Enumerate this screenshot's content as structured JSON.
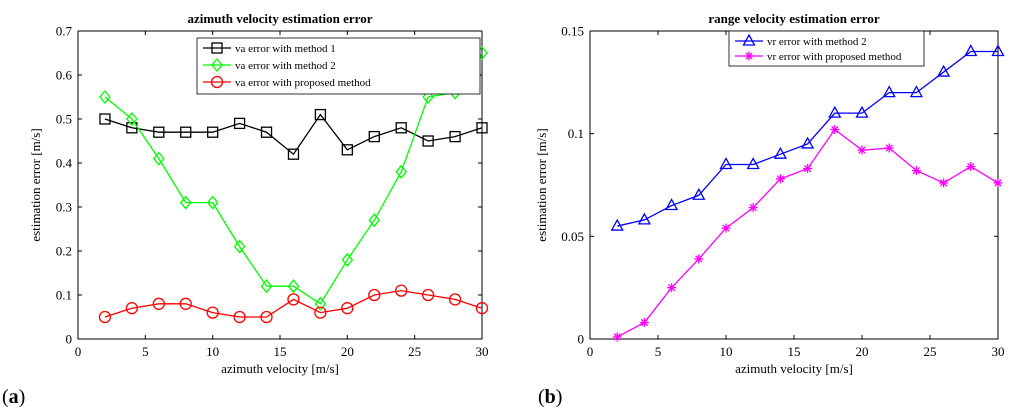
{
  "panel_labels": {
    "a": "(a)",
    "b": "(b)",
    "a_letter": "a",
    "b_letter": "b"
  },
  "chart_data": [
    {
      "type": "line",
      "title": "azimuth velocity estimation error",
      "xlabel": "azimuth velocity [m/s]",
      "ylabel": "estimation error [m/s]",
      "xlim": [
        0,
        30
      ],
      "ylim": [
        0,
        0.7
      ],
      "xticks": [
        0,
        5,
        10,
        15,
        20,
        25,
        30
      ],
      "yticks": [
        0,
        0.1,
        0.2,
        0.3,
        0.4,
        0.5,
        0.6,
        0.7
      ],
      "xtick_labels": [
        "0",
        "5",
        "10",
        "15",
        "20",
        "25",
        "30"
      ],
      "ytick_labels": [
        "0",
        "0.1",
        "0.2",
        "0.3",
        "0.4",
        "0.5",
        "0.6",
        "0.7"
      ],
      "grid": false,
      "legend_position": "top-right",
      "x": [
        2,
        4,
        6,
        8,
        10,
        12,
        14,
        16,
        18,
        20,
        22,
        24,
        26,
        28,
        30
      ],
      "series": [
        {
          "name": "va error with method 1",
          "color": "#000000",
          "marker": "square",
          "values": [
            0.5,
            0.48,
            0.47,
            0.47,
            0.47,
            0.49,
            0.47,
            0.42,
            0.51,
            0.43,
            0.46,
            0.48,
            0.45,
            0.46,
            0.48
          ]
        },
        {
          "name": "va error with method 2",
          "color": "#00ff00",
          "marker": "diamond",
          "values": [
            0.55,
            0.5,
            0.41,
            0.31,
            0.31,
            0.21,
            0.12,
            0.12,
            0.08,
            0.18,
            0.27,
            0.38,
            0.55,
            0.56,
            0.65
          ]
        },
        {
          "name": "va error with proposed method",
          "color": "#ff0000",
          "marker": "circle",
          "values": [
            0.05,
            0.07,
            0.08,
            0.08,
            0.06,
            0.05,
            0.05,
            0.09,
            0.06,
            0.07,
            0.1,
            0.11,
            0.1,
            0.09,
            0.07
          ]
        }
      ]
    },
    {
      "type": "line",
      "title": "range velocity estimation error",
      "xlabel": "azimuth velocity [m/s]",
      "ylabel": "estimation error [m/s]",
      "xlim": [
        0,
        30
      ],
      "ylim": [
        0,
        0.15
      ],
      "xticks": [
        0,
        5,
        10,
        15,
        20,
        25,
        30
      ],
      "yticks": [
        0,
        0.05,
        0.1,
        0.15
      ],
      "xtick_labels": [
        "0",
        "5",
        "10",
        "15",
        "20",
        "25",
        "30"
      ],
      "ytick_labels": [
        "0",
        "0.05",
        "0.1",
        "0.15"
      ],
      "grid": false,
      "legend_position": "top-center",
      "x": [
        2,
        4,
        6,
        8,
        10,
        12,
        14,
        16,
        18,
        20,
        22,
        24,
        26,
        28,
        30
      ],
      "series": [
        {
          "name": "vr error with method 2",
          "color": "#0000ff",
          "marker": "triangle",
          "values": [
            0.055,
            0.058,
            0.065,
            0.07,
            0.085,
            0.085,
            0.09,
            0.095,
            0.11,
            0.11,
            0.12,
            0.12,
            0.13,
            0.14,
            0.14
          ]
        },
        {
          "name": "vr error with proposed method",
          "color": "#ff00ff",
          "marker": "asterisk",
          "values": [
            0.001,
            0.008,
            0.025,
            0.039,
            0.054,
            0.064,
            0.078,
            0.083,
            0.102,
            0.092,
            0.093,
            0.082,
            0.076,
            0.084,
            0.076
          ]
        }
      ]
    }
  ]
}
